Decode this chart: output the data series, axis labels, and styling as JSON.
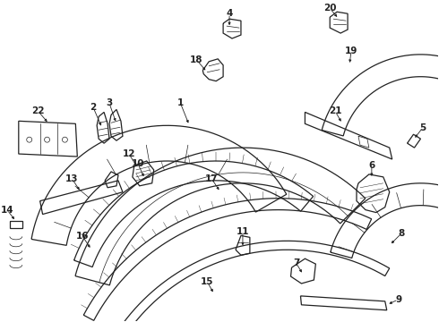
{
  "background": "#ffffff",
  "line_color": "#222222",
  "fig_width": 4.9,
  "fig_height": 3.6,
  "dpi": 100
}
